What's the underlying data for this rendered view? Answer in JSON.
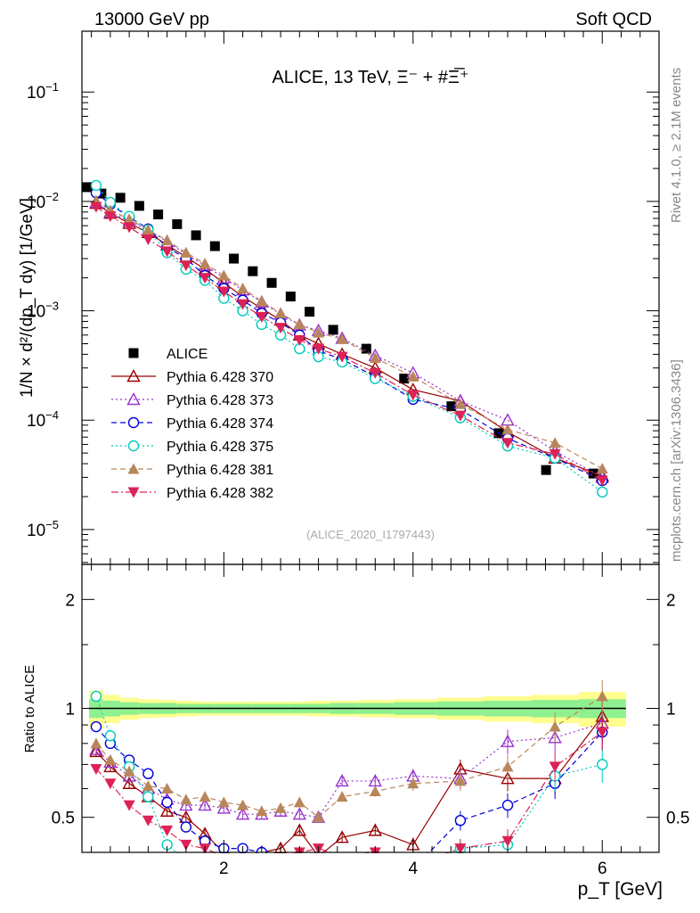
{
  "header": {
    "left": "13000 GeV pp",
    "right": "Soft QCD"
  },
  "side_labels": {
    "rivet": "Rivet 4.1.0, ≥ 2.1M events",
    "mcplots": "mcplots.cern.ch [arXiv:1306.3436]"
  },
  "chart_data": [
    {
      "type": "line",
      "panel": "main",
      "title": "ALICE, 13 TeV, Ξ⁻ + #Ξ̅⁺",
      "xlabel": "p_T [GeV]",
      "ylabel": "1/N × d²/(dp_T dy) [1/GeV]",
      "yscale": "log",
      "xlim": [
        0.5,
        6.6
      ],
      "ylim": [
        4.8e-06,
        0.36
      ],
      "y_ticks": [
        "10⁻⁵",
        "10⁻⁴",
        "10⁻³",
        "10⁻²",
        "10⁻¹"
      ],
      "y_tick_values": [
        1e-05,
        0.0001,
        0.001,
        0.01,
        0.1
      ],
      "watermark": "(ALICE_2020_I1797443)",
      "legend_position": "middle-left",
      "x": [
        0.65,
        0.8,
        1.0,
        1.2,
        1.4,
        1.6,
        1.8,
        2.0,
        2.2,
        2.4,
        2.6,
        2.8,
        3.0,
        3.25,
        3.6,
        4.0,
        4.5,
        5.0,
        5.5,
        6.0
      ],
      "series": [
        {
          "name": "ALICE",
          "color": "#000000",
          "marker": "square-filled",
          "dash": "none",
          "values": [
            0.0135,
            0.0118,
            0.0108,
            0.0091,
            0.0076,
            0.0062,
            0.0049,
            0.0039,
            0.003,
            0.0023,
            0.0018,
            0.00135,
            0.00098,
            0.00067,
            0.00045,
            0.00024,
            0.000134,
            7.6e-05,
            3.5e-05,
            3.25e-05
          ]
        },
        {
          "name": "Pythia 6.428 370",
          "color": "#990000",
          "marker": "triangle-up-open",
          "dash": "solid",
          "values": [
            0.0096,
            0.0078,
            0.0063,
            0.0052,
            0.004,
            0.0031,
            0.0024,
            0.0018,
            0.00135,
            0.00105,
            0.00082,
            0.0006,
            0.0005,
            0.0004,
            0.0003,
            0.00019,
            0.00015,
            7.8e-05,
            4.5e-05,
            3.1e-05
          ]
        },
        {
          "name": "Pythia 6.428 373",
          "color": "#9933cc",
          "marker": "triangle-up-open",
          "dash": "dotted",
          "values": [
            0.0098,
            0.008,
            0.0066,
            0.0055,
            0.0043,
            0.0033,
            0.0026,
            0.002,
            0.00155,
            0.0012,
            0.00093,
            0.00074,
            0.00066,
            0.00056,
            0.00039,
            0.00027,
            0.00015,
            0.0001,
            5.2e-05,
            3e-05
          ]
        },
        {
          "name": "Pythia 6.428 374",
          "color": "#0000dd",
          "marker": "circle-open",
          "dash": "dashed",
          "values": [
            0.012,
            0.0094,
            0.0072,
            0.0056,
            0.0038,
            0.003,
            0.0021,
            0.0016,
            0.00125,
            0.00095,
            0.00078,
            0.0006,
            0.00043,
            0.00036,
            0.00025,
            0.000155,
            0.000125,
            6.8e-05,
            4.5e-05,
            2.8e-05
          ]
        },
        {
          "name": "Pythia 6.428 375",
          "color": "#00ccbb",
          "marker": "circle-open",
          "dash": "dotted",
          "values": [
            0.014,
            0.0098,
            0.0073,
            0.0055,
            0.0034,
            0.0024,
            0.0019,
            0.0013,
            0.001,
            0.00075,
            0.0006,
            0.00045,
            0.00038,
            0.00034,
            0.00024,
            0.000165,
            0.000105,
            5.8e-05,
            4.5e-05,
            2.2e-05
          ]
        },
        {
          "name": "Pythia 6.428 381",
          "color": "#b8865b",
          "marker": "triangle-up-filled",
          "dash": "dashed",
          "values": [
            0.0102,
            0.0083,
            0.0069,
            0.0055,
            0.0044,
            0.0034,
            0.0027,
            0.0021,
            0.0016,
            0.00122,
            0.00095,
            0.00075,
            0.00063,
            0.00055,
            0.00037,
            0.00025,
            0.00014,
            8.2e-05,
            6.2e-05,
            3.6e-05
          ]
        },
        {
          "name": "Pythia 6.428 382",
          "color": "#dd2255",
          "marker": "triangle-down-filled",
          "dash": "dashdot",
          "values": [
            0.0089,
            0.0073,
            0.0058,
            0.0045,
            0.0035,
            0.0026,
            0.002,
            0.0015,
            0.00115,
            0.00088,
            0.0007,
            0.00054,
            0.00045,
            0.00038,
            0.00027,
            0.00017,
            0.00011,
            6.2e-05,
            4.9e-05,
            2.8e-05
          ]
        }
      ]
    },
    {
      "type": "line",
      "panel": "ratio",
      "ylabel": "Ratio to ALICE",
      "xlabel": "p_T [GeV]",
      "yscale": "log",
      "xlim": [
        0.5,
        6.6
      ],
      "ylim": [
        0.4,
        2.5
      ],
      "y_ticks": [
        "0.5",
        "1",
        "2"
      ],
      "y_tick_values": [
        0.5,
        1,
        2
      ],
      "x_ticks": [
        "2",
        "4",
        "6"
      ],
      "x_tick_values": [
        2,
        4,
        6
      ],
      "band_green": [
        0.06,
        0.05,
        0.04,
        0.035,
        0.035,
        0.03,
        0.03,
        0.03,
        0.03,
        0.03,
        0.03,
        0.03,
        0.03,
        0.035,
        0.035,
        0.04,
        0.045,
        0.05,
        0.055,
        0.06
      ],
      "band_yellow": [
        0.12,
        0.09,
        0.07,
        0.06,
        0.055,
        0.05,
        0.045,
        0.045,
        0.045,
        0.045,
        0.045,
        0.045,
        0.05,
        0.05,
        0.055,
        0.06,
        0.07,
        0.08,
        0.09,
        0.11
      ],
      "x": [
        0.65,
        0.8,
        1.0,
        1.2,
        1.4,
        1.6,
        1.8,
        2.0,
        2.2,
        2.4,
        2.6,
        2.8,
        3.0,
        3.25,
        3.6,
        4.0,
        4.5,
        5.0,
        5.5,
        6.0
      ],
      "series": [
        {
          "name": "Pythia 6.428 370",
          "values": [
            0.76,
            0.69,
            0.62,
            0.57,
            0.52,
            0.5,
            0.45,
            0.4,
            0.39,
            0.4,
            0.41,
            0.46,
            0.39,
            0.44,
            0.46,
            0.42,
            0.68,
            0.64,
            0.64,
            0.95
          ]
        },
        {
          "name": "Pythia 6.428 373",
          "values": [
            0.77,
            0.71,
            0.65,
            0.6,
            0.56,
            0.54,
            0.54,
            0.53,
            0.51,
            0.51,
            0.52,
            0.51,
            0.5,
            0.63,
            0.63,
            0.65,
            0.64,
            0.81,
            0.83,
            0.91
          ]
        },
        {
          "name": "Pythia 6.428 374",
          "values": [
            0.89,
            0.8,
            0.72,
            0.66,
            0.55,
            0.47,
            0.43,
            0.41,
            0.41,
            0.4,
            0.38,
            0.38,
            0.37,
            0.39,
            0.36,
            0.35,
            0.49,
            0.54,
            0.62,
            0.86
          ]
        },
        {
          "name": "Pythia 6.428 375",
          "values": [
            1.08,
            0.84,
            0.69,
            0.57,
            0.42,
            0.38,
            0.37,
            0.35,
            0.34,
            0.33,
            0.33,
            0.34,
            0.37,
            0.34,
            0.33,
            0.34,
            0.41,
            0.42,
            0.65,
            0.7
          ]
        },
        {
          "name": "Pythia 6.428 381",
          "values": [
            0.8,
            0.72,
            0.67,
            0.61,
            0.6,
            0.56,
            0.57,
            0.55,
            0.54,
            0.52,
            0.53,
            0.55,
            0.5,
            0.57,
            0.59,
            0.62,
            0.63,
            0.69,
            0.89,
            1.08
          ]
        },
        {
          "name": "Pythia 6.428 382",
          "values": [
            0.68,
            0.62,
            0.54,
            0.49,
            0.46,
            0.42,
            0.41,
            0.39,
            0.38,
            0.38,
            0.39,
            0.4,
            0.41,
            0.39,
            0.4,
            0.37,
            0.41,
            0.43,
            0.69,
            0.86
          ]
        }
      ]
    }
  ]
}
